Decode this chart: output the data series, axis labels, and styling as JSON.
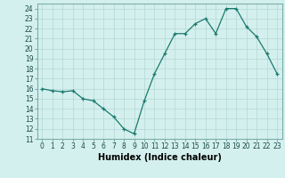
{
  "x": [
    0,
    1,
    2,
    3,
    4,
    5,
    6,
    7,
    8,
    9,
    10,
    11,
    12,
    13,
    14,
    15,
    16,
    17,
    18,
    19,
    20,
    21,
    22,
    23
  ],
  "y": [
    16,
    15.8,
    15.7,
    15.8,
    15.0,
    14.8,
    14.0,
    13.2,
    12.0,
    11.5,
    14.8,
    17.5,
    19.5,
    21.5,
    21.5,
    22.5,
    23.0,
    21.5,
    24.0,
    24.0,
    22.2,
    21.2,
    19.5,
    17.5
  ],
  "xlabel": "Humidex (Indice chaleur)",
  "xlim": [
    -0.5,
    23.5
  ],
  "ylim": [
    11,
    24.5
  ],
  "yticks": [
    11,
    12,
    13,
    14,
    15,
    16,
    17,
    18,
    19,
    20,
    21,
    22,
    23,
    24
  ],
  "xticks": [
    0,
    1,
    2,
    3,
    4,
    5,
    6,
    7,
    8,
    9,
    10,
    11,
    12,
    13,
    14,
    15,
    16,
    17,
    18,
    19,
    20,
    21,
    22,
    23
  ],
  "line_color": "#1a7a6e",
  "bg_color": "#d4f0ee",
  "grid_color": "#b8dbd9",
  "marker": "+",
  "marker_size": 3.5,
  "tick_fontsize": 5.5,
  "xlabel_fontsize": 7
}
